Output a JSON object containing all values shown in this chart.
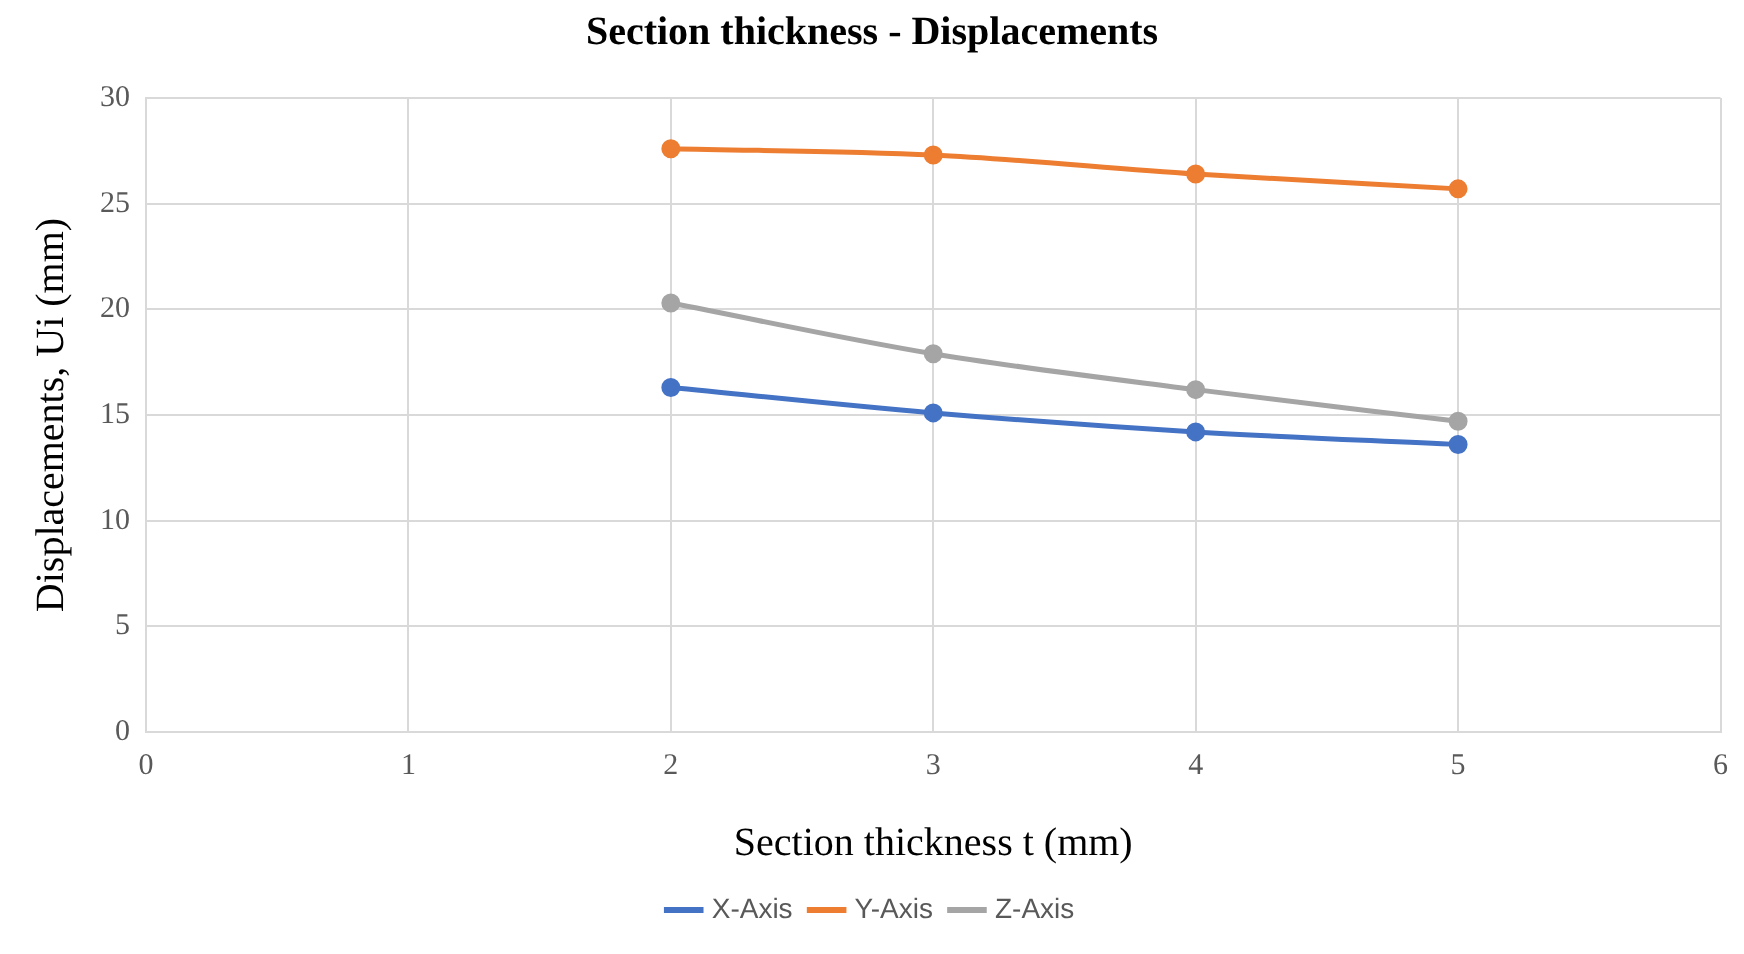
{
  "chart_data": {
    "type": "line",
    "title": "Section thickness - Displacements",
    "xlabel": "Section thickness t (mm)",
    "ylabel": "Displacements, Ui (mm)",
    "x": [
      2,
      3,
      4,
      5
    ],
    "series": [
      {
        "name": "X-Axis",
        "color": "#4472c4",
        "values": [
          16.3,
          15.1,
          14.2,
          13.6
        ]
      },
      {
        "name": "Y-Axis",
        "color": "#ed7d31",
        "values": [
          27.6,
          27.3,
          26.4,
          25.7
        ]
      },
      {
        "name": "Z-Axis",
        "color": "#a5a5a5",
        "values": [
          20.3,
          17.9,
          16.2,
          14.7
        ]
      }
    ],
    "xlim": [
      0,
      6
    ],
    "xticks": [
      0,
      1,
      2,
      3,
      4,
      5,
      6
    ],
    "ylim": [
      0,
      30
    ],
    "yticks": [
      0,
      5,
      10,
      15,
      20,
      25,
      30
    ],
    "grid": true,
    "legend": "bottom",
    "marker": "circle",
    "line_style": "solid"
  }
}
